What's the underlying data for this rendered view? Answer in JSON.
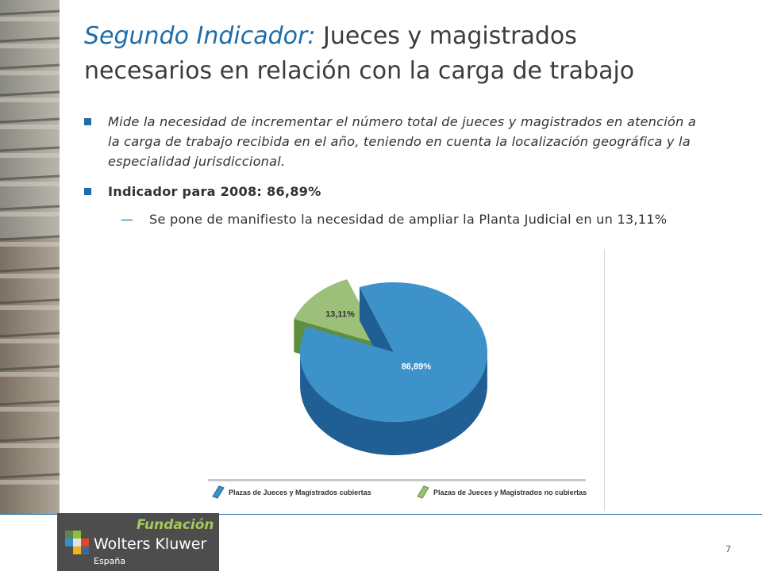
{
  "title": {
    "accent": "Segundo Indicador:",
    "line1_rest": " Jueces y magistrados",
    "line2": "necesarios en relación con la carga de trabajo"
  },
  "bullets": [
    {
      "text": "Mide la necesidad de incrementar el número total de jueces y magistrados en atención a la carga de trabajo recibida en el año, teniendo en cuenta la localización geográfica y la especialidad jurisdiccional."
    },
    {
      "text": "Indicador para 2008: 86,89%"
    }
  ],
  "sub_bullet": {
    "dash": "—",
    "text": "Se pone de manifiesto la necesidad de ampliar la Planta Judicial en un 13,11%"
  },
  "chart_data": {
    "type": "pie",
    "title": "",
    "slices": [
      {
        "label": "Plazas de Jueces y Magistrados cubiertas",
        "value": 86.89,
        "display": "86,89%",
        "color": "#3d92c9",
        "side_color": "#1f5f94"
      },
      {
        "label": "Plazas de Jueces y Magistrados no cubiertas",
        "value": 13.11,
        "display": "13,11%",
        "color": "#9cc07a",
        "side_color": "#5e8f3e"
      }
    ],
    "legend_position": "bottom"
  },
  "footer": {
    "logo_fundacion": "Fundación",
    "logo_name": "Wolters Kluwer",
    "logo_country": "España",
    "page_number": "7"
  },
  "colors": {
    "accent": "#1e6ca8",
    "logo_bg": "#4d4d4d",
    "logo_green": "#a5c95a"
  }
}
